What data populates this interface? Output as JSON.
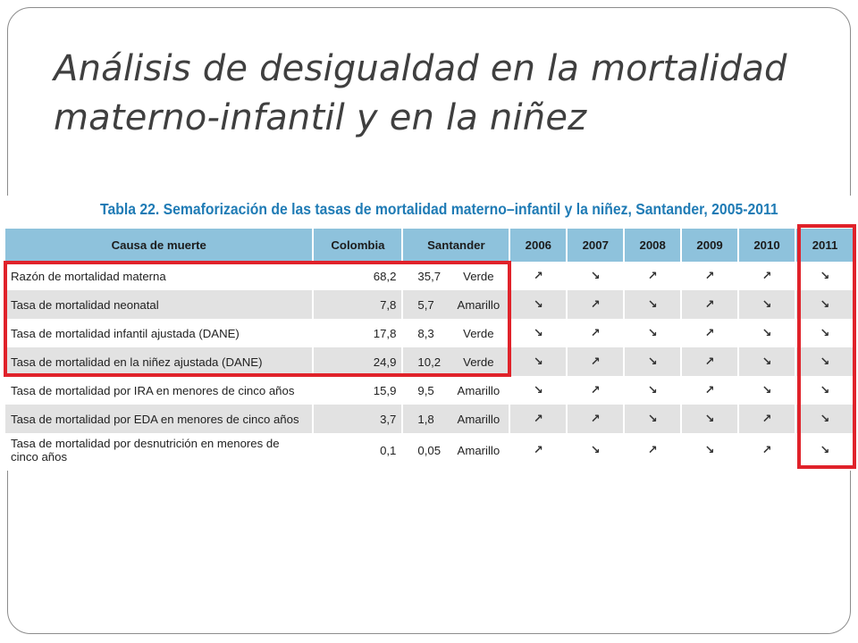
{
  "title": "Análisis de desigualdad en la mortalidad materno-infantil y en la niñez",
  "table": {
    "caption": "Tabla 22. Semaforización de las tasas de mortalidad materno–infantil y la niñez, Santander, 2005-2011",
    "headers": {
      "cause": "Causa de muerte",
      "colombia": "Colombia",
      "santander": "Santander",
      "years": [
        "2006",
        "2007",
        "2008",
        "2009",
        "2010",
        "2011"
      ]
    },
    "rows": [
      {
        "cause": "Razón de mortalidad materna",
        "colombia": "68,2",
        "santander": "35,7",
        "semaforo": "Verde",
        "trends": [
          "↗",
          "↘",
          "↗",
          "↗",
          "↗",
          "↘"
        ]
      },
      {
        "cause": "Tasa de mortalidad neonatal",
        "colombia": "7,8",
        "santander": "5,7",
        "semaforo": "Amarillo",
        "trends": [
          "↘",
          "↗",
          "↘",
          "↗",
          "↘",
          "↘"
        ]
      },
      {
        "cause": "Tasa de mortalidad infantil ajustada (DANE)",
        "colombia": "17,8",
        "santander": "8,3",
        "semaforo": "Verde",
        "trends": [
          "↘",
          "↗",
          "↘",
          "↗",
          "↘",
          "↘"
        ]
      },
      {
        "cause": "Tasa de mortalidad en la niñez ajustada (DANE)",
        "colombia": "24,9",
        "santander": "10,2",
        "semaforo": "Verde",
        "trends": [
          "↘",
          "↗",
          "↘",
          "↗",
          "↘",
          "↘"
        ]
      },
      {
        "cause": "Tasa de mortalidad por IRA en menores de cinco años",
        "colombia": "15,9",
        "santander": "9,5",
        "semaforo": "Amarillo",
        "trends": [
          "↘",
          "↗",
          "↘",
          "↗",
          "↘",
          "↘"
        ]
      },
      {
        "cause": "Tasa de mortalidad por EDA en menores de cinco años",
        "colombia": "3,7",
        "santander": "1,8",
        "semaforo": "Amarillo",
        "trends": [
          "↗",
          "↗",
          "↘",
          "↘",
          "↗",
          "↘"
        ]
      },
      {
        "cause": "Tasa de mortalidad por desnutrición en menores de cinco años",
        "colombia": "0,1",
        "santander": "0,05",
        "semaforo": "Amarillo",
        "trends": [
          "↗",
          "↘",
          "↗",
          "↘",
          "↗",
          "↘"
        ]
      }
    ]
  },
  "colors": {
    "header_bg": "#8ec2dc",
    "caption": "#1f7bb5",
    "highlight": "#e0222a",
    "row_shade": "#e2e2e2"
  }
}
